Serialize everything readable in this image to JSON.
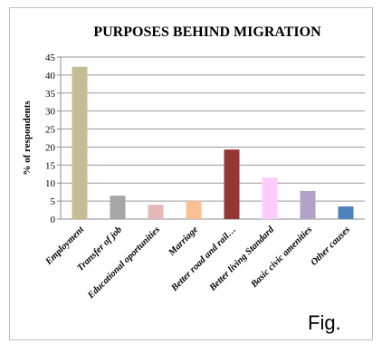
{
  "figure_label": "Fig.",
  "chart_data": {
    "type": "bar",
    "title": "PURPOSES BEHIND MIGRATION",
    "xlabel": "",
    "ylabel": "% of respondents",
    "ylim": [
      0,
      45
    ],
    "yticks": [
      0,
      5,
      10,
      15,
      20,
      25,
      30,
      35,
      40,
      45
    ],
    "grid": true,
    "categories": [
      "Employment",
      "Transfer of job",
      "Educational oportunities",
      "Marriage",
      "Better road and rail…",
      "Better living Standard",
      "Basic civic amenities",
      "Other causes"
    ],
    "values": [
      42.3,
      6.5,
      4.0,
      5.0,
      19.3,
      11.5,
      7.8,
      3.5
    ],
    "colors": [
      "#c4bd97",
      "#a6a6a6",
      "#e6b9b8",
      "#fac090",
      "#953735",
      "#ffccff",
      "#b3a2c7",
      "#4f81bd"
    ]
  }
}
